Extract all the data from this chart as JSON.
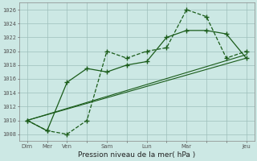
{
  "xlabel": "Pression niveau de la mer( hPa )",
  "bg_color": "#cce8e4",
  "grid_color": "#9dbfbb",
  "line_color": "#1a5c1a",
  "ylim": [
    1007,
    1027
  ],
  "yticks": [
    1008,
    1010,
    1012,
    1014,
    1016,
    1018,
    1020,
    1022,
    1024,
    1026
  ],
  "series1_x": [
    0,
    0.5,
    1,
    1.5,
    2,
    2.5,
    3,
    3.5,
    4,
    4.5,
    5,
    5.5
  ],
  "series1_y": [
    1010.0,
    1008.5,
    1008.0,
    1010.0,
    1020.0,
    1019.0,
    1020.0,
    1020.5,
    1026.0,
    1025.0,
    1019.0,
    1020.0
  ],
  "series2_x": [
    0,
    0.5,
    1,
    1.5,
    2,
    2.5,
    3,
    3.5,
    4,
    4.5,
    5,
    5.5
  ],
  "series2_y": [
    1010.0,
    1008.5,
    1015.5,
    1017.5,
    1017.0,
    1018.0,
    1018.5,
    1022.0,
    1023.0,
    1023.0,
    1022.5,
    1019.0
  ],
  "series3_x": [
    0,
    5.5
  ],
  "series3_y": [
    1010.0,
    1019.0
  ],
  "series4_x": [
    0,
    5.5
  ],
  "series4_y": [
    1010.0,
    1019.5
  ],
  "x_tick_positions": [
    0,
    0.5,
    1,
    1.5,
    2,
    2.5,
    3,
    3.5,
    4,
    4.5,
    5,
    5.5
  ],
  "x_tick_labels": [
    "Dim",
    "Mer",
    "Ven",
    "",
    "Sam",
    "",
    "Lun",
    "",
    "Mar",
    "",
    "",
    "Jeu"
  ],
  "x_major_positions": [
    0,
    0.5,
    1,
    1.5,
    2,
    2.5,
    3,
    3.5,
    4,
    4.5,
    5,
    5.5
  ],
  "xlim": [
    -0.2,
    5.7
  ]
}
